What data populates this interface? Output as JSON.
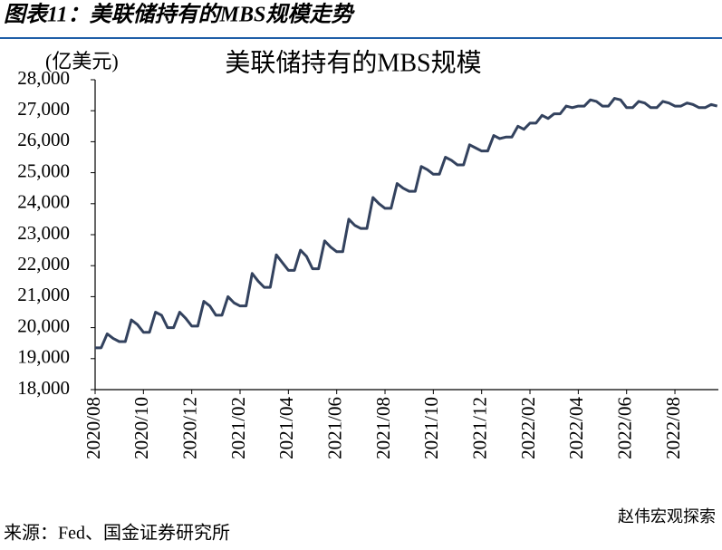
{
  "header": {
    "title": "图表11：美联储持有的MBS规模走势"
  },
  "chart_data": {
    "type": "line",
    "title": "美联储持有的MBS规模",
    "y_unit_label": "(亿美元)",
    "categories": [
      "2020/08",
      null,
      null,
      null,
      null,
      null,
      null,
      null,
      "2020/10",
      null,
      null,
      null,
      null,
      null,
      null,
      null,
      "2020/12",
      null,
      null,
      null,
      null,
      null,
      null,
      null,
      "2021/02",
      null,
      null,
      null,
      null,
      null,
      null,
      null,
      "2021/04",
      null,
      null,
      null,
      null,
      null,
      null,
      null,
      "2021/06",
      null,
      null,
      null,
      null,
      null,
      null,
      null,
      "2021/08",
      null,
      null,
      null,
      null,
      null,
      null,
      null,
      "2021/10",
      null,
      null,
      null,
      null,
      null,
      null,
      null,
      "2021/12",
      null,
      null,
      null,
      null,
      null,
      null,
      null,
      "2022/02",
      null,
      null,
      null,
      null,
      null,
      null,
      null,
      "2022/04",
      null,
      null,
      null,
      null,
      null,
      null,
      null,
      "2022/06",
      null,
      null,
      null,
      null,
      null,
      null,
      null,
      "2022/08",
      null,
      null,
      null,
      null,
      null,
      null,
      null
    ],
    "series": [
      {
        "name": "美联储持有的MBS规模",
        "color": "#33425e",
        "values": [
          19350,
          19350,
          19800,
          19650,
          19550,
          19550,
          20250,
          20100,
          19850,
          19850,
          20500,
          20400,
          20000,
          20000,
          20500,
          20300,
          20050,
          20050,
          20850,
          20700,
          20400,
          20400,
          21000,
          20800,
          20700,
          20700,
          21750,
          21500,
          21300,
          21300,
          22350,
          22100,
          21850,
          21850,
          22500,
          22300,
          21900,
          21900,
          22800,
          22600,
          22450,
          22450,
          23500,
          23300,
          23200,
          23200,
          24200,
          24000,
          23850,
          23850,
          24650,
          24500,
          24400,
          24400,
          25200,
          25100,
          24950,
          24950,
          25500,
          25400,
          25250,
          25250,
          25900,
          25800,
          25700,
          25700,
          26200,
          26100,
          26150,
          26150,
          26500,
          26400,
          26600,
          26600,
          26850,
          26750,
          26900,
          26900,
          27150,
          27100,
          27150,
          27150,
          27350,
          27300,
          27150,
          27150,
          27400,
          27350,
          27100,
          27100,
          27300,
          27250,
          27100,
          27100,
          27300,
          27250,
          27150,
          27150,
          27250,
          27200,
          27100,
          27100,
          27200,
          27150
        ]
      }
    ],
    "ylim": [
      18000,
      28000
    ],
    "yticks": [
      {
        "value": 18000,
        "label": "18,000"
      },
      {
        "value": 19000,
        "label": "19,000"
      },
      {
        "value": 20000,
        "label": "20,000"
      },
      {
        "value": 21000,
        "label": "21,000"
      },
      {
        "value": 22000,
        "label": "22,000"
      },
      {
        "value": 23000,
        "label": "23,000"
      },
      {
        "value": 24000,
        "label": "24,000"
      },
      {
        "value": 25000,
        "label": "25,000"
      },
      {
        "value": 26000,
        "label": "26,000"
      },
      {
        "value": 27000,
        "label": "27,000"
      },
      {
        "value": 28000,
        "label": "28,000"
      }
    ],
    "grid": false
  },
  "footer": {
    "source": "来源：Fed、国金证券研究所",
    "watermark": "赵伟宏观探索"
  }
}
